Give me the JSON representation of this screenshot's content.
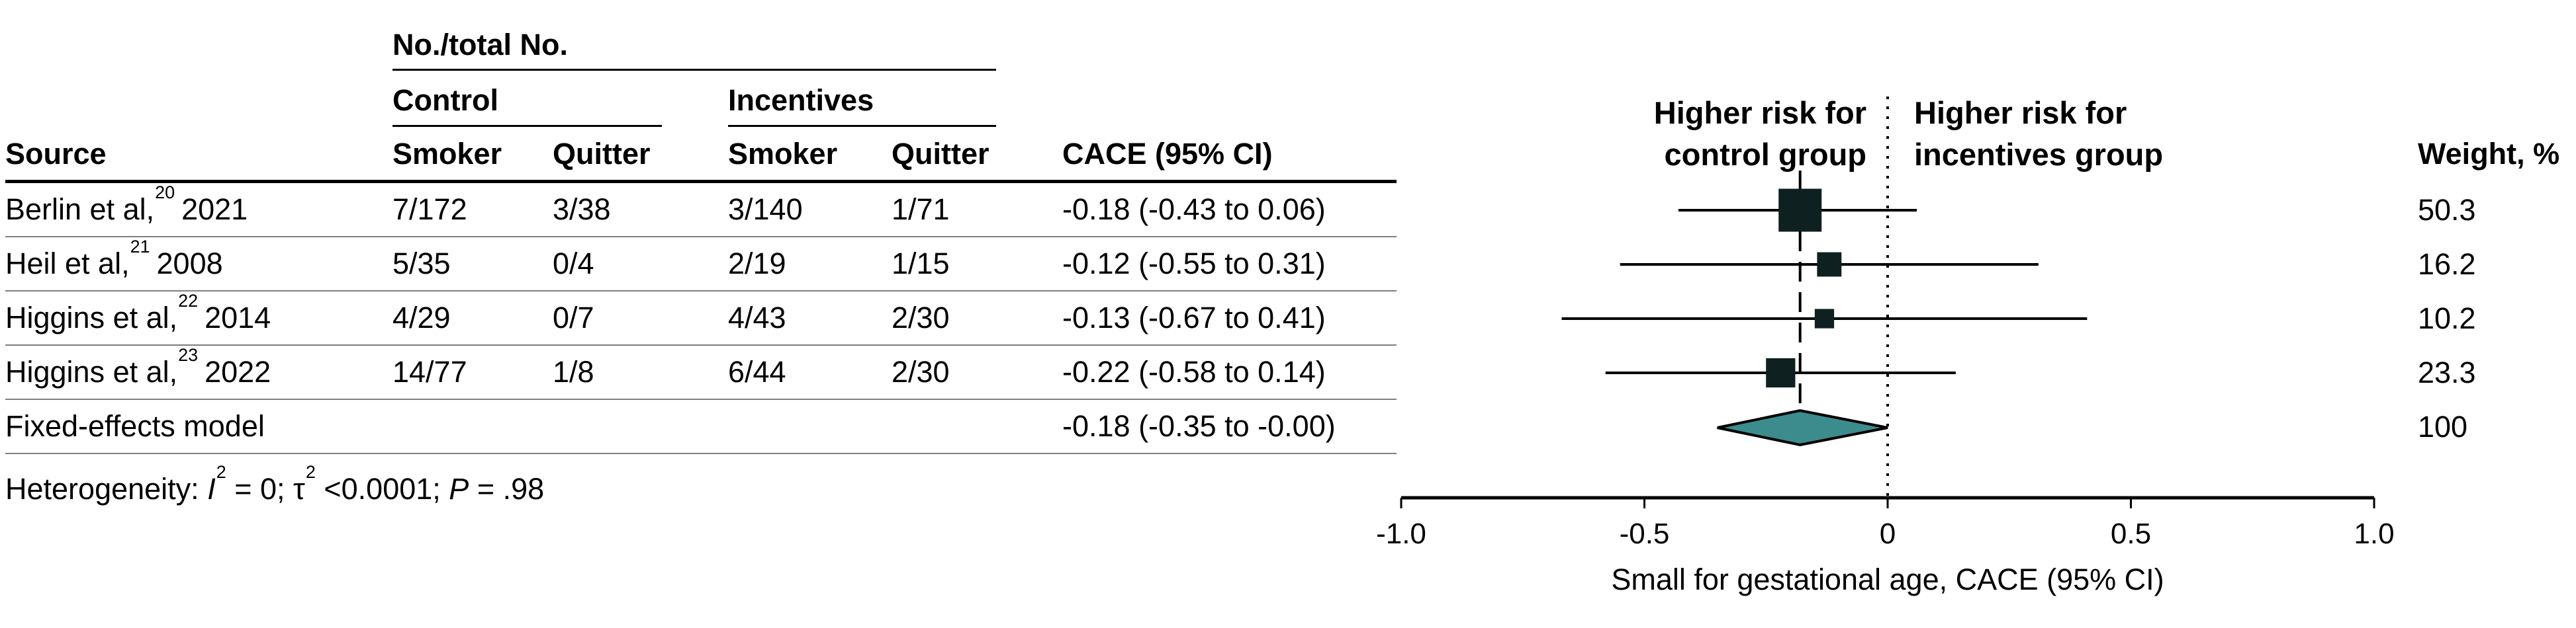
{
  "table": {
    "group_header": "No./total No.",
    "subgroups": {
      "control": "Control",
      "incentives": "Incentives"
    },
    "columns": {
      "source": "Source",
      "smoker": "Smoker",
      "quitter": "Quitter",
      "cace": "CACE (95% CI)",
      "weight": "Weight, %"
    },
    "rows": [
      {
        "source": "Berlin et al,",
        "ref": "20",
        "year": "2021",
        "control_smoker": "7/172",
        "control_quitter": "3/38",
        "incentives_smoker": "3/140",
        "incentives_quitter": "1/71",
        "cace": "-0.18 (-0.43 to 0.06)",
        "weight": "50.3"
      },
      {
        "source": "Heil et al,",
        "ref": "21",
        "year": "2008",
        "control_smoker": "5/35",
        "control_quitter": "0/4",
        "incentives_smoker": "2/19",
        "incentives_quitter": "1/15",
        "cace": "-0.12 (-0.55 to 0.31)",
        "weight": "16.2"
      },
      {
        "source": "Higgins et al,",
        "ref": "22",
        "year": "2014",
        "control_smoker": "4/29",
        "control_quitter": "0/7",
        "incentives_smoker": "4/43",
        "incentives_quitter": "2/30",
        "cace": "-0.13 (-0.67 to 0.41)",
        "weight": "10.2"
      },
      {
        "source": "Higgins et al,",
        "ref": "23",
        "year": "2022",
        "control_smoker": "14/77",
        "control_quitter": "1/8",
        "incentives_smoker": "6/44",
        "incentives_quitter": "2/30",
        "cace": "-0.22 (-0.58 to 0.14)",
        "weight": "23.3"
      }
    ],
    "summary_row": {
      "source": "Fixed-effects model",
      "cace": "-0.18 (-0.35 to -0.00)",
      "weight": "100"
    },
    "heterogeneity": {
      "segments": [
        {
          "t": "Heterogeneity: ",
          "s": "n"
        },
        {
          "t": "I",
          "s": "i"
        },
        {
          "t": "2",
          "s": "sup"
        },
        {
          "t": " = 0; τ",
          "s": "n"
        },
        {
          "t": "2",
          "s": "sup"
        },
        {
          "t": " <0.0001; ",
          "s": "n"
        },
        {
          "t": "P",
          "s": "i"
        },
        {
          "t": " = .98",
          "s": "n"
        }
      ]
    }
  },
  "plot": {
    "left_label": {
      "line1": "Higher risk for",
      "line2": "control group"
    },
    "right_label": {
      "line1": "Higher risk for",
      "line2": "incentives group"
    },
    "tick_labels": [
      "-1.0",
      "-0.5",
      "0",
      "0.5",
      "1.0"
    ],
    "xlabel": "Small for gestational age, CACE (95% CI)"
  },
  "chart_data": {
    "type": "forest",
    "xlabel": "Small for gestational age, CACE (95% CI)",
    "xlim": [
      -1.0,
      1.0
    ],
    "ticks": [
      -1.0,
      -0.5,
      0,
      0.5,
      1.0
    ],
    "reference_line": 0,
    "pooled_estimate": -0.18,
    "studies": [
      {
        "name": "Berlin et al, 2021",
        "estimate": -0.18,
        "ci_low": -0.43,
        "ci_high": 0.06,
        "weight_pct": 50.3
      },
      {
        "name": "Heil et al, 2008",
        "estimate": -0.12,
        "ci_low": -0.55,
        "ci_high": 0.31,
        "weight_pct": 16.2
      },
      {
        "name": "Higgins et al, 2014",
        "estimate": -0.13,
        "ci_low": -0.67,
        "ci_high": 0.41,
        "weight_pct": 10.2
      },
      {
        "name": "Higgins et al, 2022",
        "estimate": -0.22,
        "ci_low": -0.58,
        "ci_high": 0.14,
        "weight_pct": 23.3
      }
    ],
    "summary": {
      "name": "Fixed-effects model",
      "estimate": -0.18,
      "ci_low": -0.35,
      "ci_high": -0.0,
      "weight_pct": 100
    },
    "colors": {
      "square": "#0e2120",
      "diamond": "#3c8c8d"
    }
  }
}
